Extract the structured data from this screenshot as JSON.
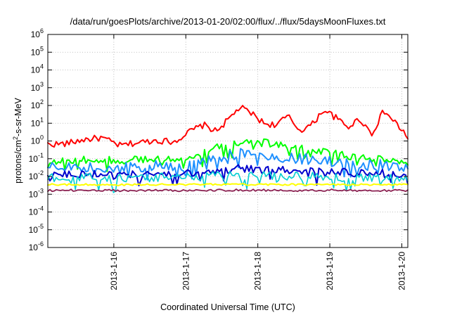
{
  "chart_data": {
    "type": "line",
    "title": "/data/run/goesPlots/archive/2013-01-20/02:00/flux/../flux/5daysMoonFluxes.txt",
    "xlabel": "Coordinated Universal Time (UTC)",
    "ylabel": "protons/cm²-s-sr-MeV",
    "ylabel_parts": {
      "base": "protons/cm",
      "sup": "2",
      "rest": "-s-sr-MeV"
    },
    "yscale": "log",
    "ylim": [
      1e-06,
      1000000.0
    ],
    "xlim": [
      "2013-01-15 02:00",
      "2013-01-20 02:00"
    ],
    "grid": true,
    "legend": "none",
    "x_ticks": [
      "2013-1-16",
      "2013-1-17",
      "2013-1-18",
      "2013-1-19",
      "2013-1-20"
    ],
    "y_ticks": [
      {
        "base": "10",
        "exp": "-6",
        "value": 1e-06
      },
      {
        "base": "10",
        "exp": "-5",
        "value": 1e-05
      },
      {
        "base": "10",
        "exp": "-4",
        "value": 0.0001
      },
      {
        "base": "10",
        "exp": "-3",
        "value": 0.001
      },
      {
        "base": "10",
        "exp": "-2",
        "value": 0.01
      },
      {
        "base": "10",
        "exp": "-1",
        "value": 0.1
      },
      {
        "base": "10",
        "exp": "0",
        "value": 1
      },
      {
        "base": "10",
        "exp": "1",
        "value": 10
      },
      {
        "base": "10",
        "exp": "2",
        "value": 100
      },
      {
        "base": "10",
        "exp": "3",
        "value": 1000
      },
      {
        "base": "10",
        "exp": "4",
        "value": 10000
      },
      {
        "base": "10",
        "exp": "5",
        "value": 100000
      },
      {
        "base": "10",
        "exp": "6",
        "value": 1000000
      }
    ],
    "series": [
      {
        "color": "#ff0000",
        "x": [
          "2013-01-15 02:00",
          "2013-01-15 08:00",
          "2013-01-15 14:00",
          "2013-01-15 20:00",
          "2013-01-16 02:00",
          "2013-01-16 08:00",
          "2013-01-16 14:00",
          "2013-01-16 20:00",
          "2013-01-17 02:00",
          "2013-01-17 06:00",
          "2013-01-17 10:00",
          "2013-01-17 14:00",
          "2013-01-17 18:00",
          "2013-01-17 22:00",
          "2013-01-18 02:00",
          "2013-01-18 06:00",
          "2013-01-18 10:00",
          "2013-01-18 14:00",
          "2013-01-18 18:00",
          "2013-01-18 22:00",
          "2013-01-19 02:00",
          "2013-01-19 06:00",
          "2013-01-19 10:00",
          "2013-01-19 14:00",
          "2013-01-19 18:00",
          "2013-01-19 22:00",
          "2013-01-20 02:00"
        ],
        "values": [
          0.65,
          0.7,
          1.2,
          1.5,
          0.55,
          0.8,
          1.1,
          0.9,
          4,
          8,
          3.5,
          15,
          80,
          35,
          10,
          8,
          25,
          4,
          8,
          60,
          20,
          6,
          18,
          2.5,
          50,
          10,
          1.6
        ]
      },
      {
        "color": "#00ff00",
        "x": [
          "2013-01-15 02:00",
          "2013-01-15 14:00",
          "2013-01-16 02:00",
          "2013-01-16 14:00",
          "2013-01-17 02:00",
          "2013-01-17 10:00",
          "2013-01-17 18:00",
          "2013-01-18 02:00",
          "2013-01-18 10:00",
          "2013-01-18 18:00",
          "2013-01-19 02:00",
          "2013-01-19 14:00",
          "2013-01-20 02:00"
        ],
        "values": [
          0.07,
          0.09,
          0.08,
          0.1,
          0.1,
          0.4,
          0.9,
          0.8,
          0.5,
          0.3,
          0.18,
          0.1,
          0.07
        ]
      },
      {
        "color": "#1e90ff",
        "x": [
          "2013-01-15 02:00",
          "2013-01-15 14:00",
          "2013-01-16 02:00",
          "2013-01-16 14:00",
          "2013-01-17 02:00",
          "2013-01-17 10:00",
          "2013-01-17 18:00",
          "2013-01-18 02:00",
          "2013-01-18 10:00",
          "2013-01-18 18:00",
          "2013-01-19 02:00",
          "2013-01-19 14:00",
          "2013-01-20 02:00"
        ],
        "values": [
          0.03,
          0.035,
          0.03,
          0.04,
          0.04,
          0.12,
          0.2,
          0.15,
          0.12,
          0.09,
          0.06,
          0.05,
          0.03
        ]
      },
      {
        "color": "#0000cd",
        "x": [
          "2013-01-15 02:00",
          "2013-01-15 14:00",
          "2013-01-16 02:00",
          "2013-01-16 14:00",
          "2013-01-17 02:00",
          "2013-01-17 10:00",
          "2013-01-17 18:00",
          "2013-01-18 02:00",
          "2013-01-18 10:00",
          "2013-01-18 18:00",
          "2013-01-19 02:00",
          "2013-01-19 14:00",
          "2013-01-20 02:00"
        ],
        "values": [
          0.012,
          0.014,
          0.012,
          0.015,
          0.015,
          0.022,
          0.03,
          0.025,
          0.022,
          0.02,
          0.018,
          0.016,
          0.014
        ]
      },
      {
        "color": "#00ced1",
        "x": [
          "2013-01-15 02:00",
          "2013-01-15 14:00",
          "2013-01-16 02:00",
          "2013-01-16 14:00",
          "2013-01-17 02:00",
          "2013-01-17 14:00",
          "2013-01-18 02:00",
          "2013-01-18 14:00",
          "2013-01-19 02:00",
          "2013-01-19 14:00",
          "2013-01-20 02:00"
        ],
        "values": [
          0.008,
          0.009,
          0.008,
          0.009,
          0.009,
          0.012,
          0.011,
          0.01,
          0.009,
          0.009,
          0.008
        ]
      },
      {
        "color": "#ffff00",
        "x": [
          "2013-01-15 02:00",
          "2013-01-15 14:00",
          "2013-01-16 02:00",
          "2013-01-16 14:00",
          "2013-01-17 02:00",
          "2013-01-17 14:00",
          "2013-01-18 02:00",
          "2013-01-18 14:00",
          "2013-01-19 02:00",
          "2013-01-19 14:00",
          "2013-01-20 02:00"
        ],
        "values": [
          0.0035,
          0.0035,
          0.0034,
          0.0035,
          0.0035,
          0.0036,
          0.0035,
          0.0035,
          0.0034,
          0.0035,
          0.0035
        ]
      },
      {
        "color": "#8b2252",
        "x": [
          "2013-01-15 02:00",
          "2013-01-15 14:00",
          "2013-01-16 02:00",
          "2013-01-16 14:00",
          "2013-01-17 02:00",
          "2013-01-17 14:00",
          "2013-01-18 02:00",
          "2013-01-18 14:00",
          "2013-01-19 02:00",
          "2013-01-19 14:00",
          "2013-01-20 02:00"
        ],
        "values": [
          0.0016,
          0.0017,
          0.0016,
          0.0017,
          0.0016,
          0.0017,
          0.0017,
          0.0016,
          0.0017,
          0.0016,
          0.0016
        ]
      }
    ]
  }
}
